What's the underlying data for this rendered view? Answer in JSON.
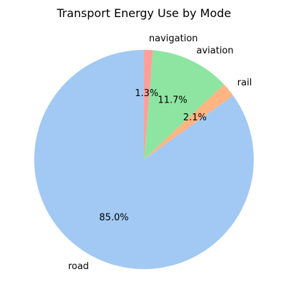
{
  "chart_data": {
    "type": "pie",
    "title": "Transport Energy Use by Mode",
    "slices": [
      {
        "label": "road",
        "value": 85.0,
        "percent_label": "85.0%",
        "color": "#A1C9F4"
      },
      {
        "label": "rail",
        "value": 2.1,
        "percent_label": "2.1%",
        "color": "#FFB482"
      },
      {
        "label": "aviation",
        "value": 11.7,
        "percent_label": "11.7%",
        "color": "#8DE5A1"
      },
      {
        "label": "navigation",
        "value": 1.3,
        "percent_label": "1.3%",
        "color": "#FF9F9B"
      }
    ],
    "start_angle": "top",
    "direction": "counterclockwise",
    "legend": "none"
  }
}
